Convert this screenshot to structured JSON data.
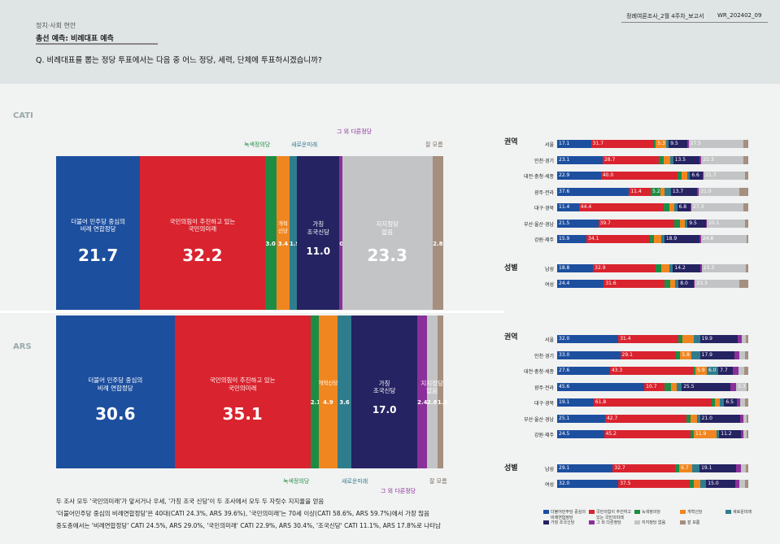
{
  "header": {
    "category": "정치·사회 현안",
    "section": "총선 예측: 비례대표 예측",
    "question": "Q. 비례대표를 뽑는 정당 투표에서는 다음 중 어느 정당, 세력, 단체에 투표하시겠습니까?",
    "report_name": "정례여론조사_2월 4주차_보고서",
    "report_code": "WR_202402_09"
  },
  "colors": {
    "democratic": "#1d4f9f",
    "ppp": "#d9232e",
    "green": "#1e8c45",
    "reform": "#f0861f",
    "newfuture": "#2f7d8c",
    "cho": "#252361",
    "other": "#8b2f9b",
    "none": "#c3c4c6",
    "dk": "#a58f7e"
  },
  "chart_data": [
    {
      "type": "bar",
      "title": "CATI",
      "series": [
        {
          "name": "더불어민주당 중심의 비례 연합정당",
          "value": 21.7
        },
        {
          "name": "국민의힘이 추진하고 있는 국민의미래",
          "value": 32.2
        },
        {
          "name": "녹색정의당",
          "value": 3.0
        },
        {
          "name": "개혁신당",
          "value": 3.4
        },
        {
          "name": "새로운미래",
          "value": 1.9
        },
        {
          "name": "가칭 조국신당",
          "value": 11.0
        },
        {
          "name": "그 외 다른정당",
          "value": 0.7
        },
        {
          "name": "지지정당 없음",
          "value": 23.3
        },
        {
          "name": "잘 모름",
          "value": 2.8
        }
      ]
    },
    {
      "type": "bar",
      "title": "ARS",
      "series": [
        {
          "name": "더불어민주당 중심의 비례 연합정당",
          "value": 30.6
        },
        {
          "name": "국민의힘이 추진하고 있는 국민의미래",
          "value": 35.1
        },
        {
          "name": "녹색정의당",
          "value": 2.1
        },
        {
          "name": "개혁신당",
          "value": 4.9
        },
        {
          "name": "새로운미래",
          "value": 3.6
        },
        {
          "name": "가칭 조국신당",
          "value": 17.0
        },
        {
          "name": "그 외 다른정당",
          "value": 2.4
        },
        {
          "name": "지지정당 없음",
          "value": 2.8
        },
        {
          "name": "잘 모름",
          "value": 1.5
        }
      ]
    }
  ],
  "cati": {
    "label": "CATI",
    "top_labels": {
      "green": "녹색정의당",
      "newfuture": "새로운미래",
      "other": "그 외 다른정당",
      "dk": "잘 모름"
    },
    "dem_name": "더불어 민주당 중심의\n비례 연합정당",
    "ppp_name": "국민의힘이 추진하고 있는\n국민의미래",
    "reform_name": "개혁\n신당",
    "cho_name": "가칭\n조국신당",
    "none_name": "지지정당\n없음",
    "values": {
      "dem": "21.7",
      "ppp": "32.2",
      "green": "3.0",
      "reform": "3.4",
      "newfuture": "1.9",
      "cho": "11.0",
      "other": "0.7",
      "none": "23.3",
      "dk": "2.8"
    },
    "rows_region_title": "권역",
    "rows_gender_title": "성별",
    "rows": [
      {
        "label": "서울",
        "v": [
          17.1,
          31.7,
          1.0,
          5.3,
          1.2,
          9.5,
          0.5,
          27.5,
          2.6
        ],
        "t": [
          "17.1",
          "31.7",
          "",
          "5.3",
          "",
          "9.5",
          "",
          "27.5",
          ""
        ]
      },
      {
        "label": "인천·경기",
        "v": [
          23.1,
          28.7,
          2.3,
          3.2,
          1.6,
          13.5,
          0.8,
          21.3,
          2.5
        ],
        "t": [
          "23.1",
          "28.7",
          "",
          "",
          "",
          "13.5",
          "",
          "21.3",
          ""
        ]
      },
      {
        "label": "대전·충청·세종",
        "v": [
          22.9,
          40.0,
          2.0,
          3.1,
          1.5,
          6.6,
          0.6,
          21.7,
          1.6
        ],
        "t": [
          "22.9",
          "40.0",
          "",
          "",
          "",
          "6.6",
          "",
          "21.7",
          ""
        ]
      },
      {
        "label": "광주·전라",
        "v": [
          37.6,
          11.4,
          5.2,
          1.8,
          3.5,
          13.7,
          1.0,
          21.0,
          4.8
        ],
        "t": [
          "37.6",
          "11.4",
          "5.2",
          "",
          "",
          "13.7",
          "",
          "21.0",
          ""
        ]
      },
      {
        "label": "대구·경북",
        "v": [
          11.4,
          44.4,
          3.0,
          2.5,
          1.5,
          6.8,
          0.6,
          27.3,
          2.5
        ],
        "t": [
          "11.4",
          "44.4",
          "",
          "",
          "",
          "6.8",
          "",
          "27.3",
          ""
        ]
      },
      {
        "label": "부산·울산·경남",
        "v": [
          21.5,
          39.7,
          3.0,
          2.8,
          1.2,
          9.5,
          0.6,
          20.1,
          1.6
        ],
        "t": [
          "21.5",
          "39.7",
          "",
          "",
          "",
          "9.5",
          "",
          "20.1",
          ""
        ]
      },
      {
        "label": "강원·제주",
        "v": [
          15.9,
          34.1,
          2.5,
          3.7,
          1.8,
          18.9,
          0.9,
          24.8,
          0.8
        ],
        "t": [
          "15.9",
          "34.1",
          "",
          "",
          "",
          "18.9",
          "",
          "24.8",
          ""
        ]
      },
      {
        "label": "남성",
        "v": [
          18.8,
          32.9,
          2.8,
          4.2,
          1.9,
          14.2,
          0.8,
          23.3,
          1.1
        ],
        "t": [
          "18.8",
          "32.9",
          "",
          "",
          "",
          "14.2",
          "",
          "23.3",
          ""
        ]
      },
      {
        "label": "여성",
        "v": [
          24.4,
          31.6,
          3.1,
          2.5,
          1.9,
          8.0,
          0.6,
          23.3,
          4.6
        ],
        "t": [
          "24.4",
          "31.6",
          "",
          "",
          "",
          "8.0",
          "",
          "23.3",
          ""
        ]
      }
    ]
  },
  "ars": {
    "label": "ARS",
    "bottom_labels": {
      "green": "녹색정의당",
      "newfuture": "새로운미래",
      "other": "그 외 다른정당",
      "dk": "잘 모름"
    },
    "dem_name": "더불어 민주당 중심의\n비례 연합정당",
    "ppp_name": "국민의힘이 추진하고 있는\n국민의미래",
    "reform_name": "개혁신당",
    "cho_name": "가칭\n조국신당",
    "none_name": "지지정당\n없음",
    "values": {
      "dem": "30.6",
      "ppp": "35.1",
      "green": "2.1",
      "reform": "4.9",
      "newfuture": "3.6",
      "cho": "17.0",
      "other": "2.4",
      "none": "2.8",
      "dk": "1.5"
    },
    "rows_region_title": "권역",
    "rows_gender_title": "성별",
    "rows": [
      {
        "label": "서울",
        "v": [
          32.0,
          31.4,
          2.0,
          6.0,
          3.3,
          19.9,
          2.2,
          2.0,
          1.2
        ],
        "t": [
          "32.0",
          "31.4",
          "",
          "",
          "",
          "19.9",
          "",
          "",
          ""
        ]
      },
      {
        "label": "인천·경기",
        "v": [
          33.0,
          29.1,
          2.3,
          5.8,
          4.5,
          17.9,
          2.6,
          3.0,
          1.8
        ],
        "t": [
          "33.0",
          "29.1",
          "",
          "5.8",
          "",
          "17.9",
          "",
          "",
          ""
        ]
      },
      {
        "label": "대전·충청·세종",
        "v": [
          27.6,
          43.3,
          1.5,
          5.9,
          6.0,
          7.7,
          2.7,
          3.3,
          2.0
        ],
        "t": [
          "27.6",
          "43.3",
          "",
          "5.9",
          "6.0",
          "7.7",
          "",
          "",
          ""
        ]
      },
      {
        "label": "광주·전라",
        "v": [
          45.6,
          10.7,
          3.4,
          3.0,
          2.5,
          25.5,
          3.0,
          5.3,
          1.0
        ],
        "t": [
          "45.6",
          "10.7",
          "",
          "",
          "",
          "25.5",
          "",
          "5.3",
          ""
        ]
      },
      {
        "label": "대구·경북",
        "v": [
          19.1,
          61.8,
          1.5,
          2.8,
          2.2,
          6.5,
          2.0,
          2.5,
          1.6
        ],
        "t": [
          "19.1",
          "61.8",
          "",
          "",
          "",
          "6.5",
          "",
          "",
          ""
        ]
      },
      {
        "label": "부산·울산·경남",
        "v": [
          25.1,
          42.7,
          2.0,
          3.2,
          1.7,
          21.0,
          1.8,
          1.5,
          1.0
        ],
        "t": [
          "25.1",
          "42.7",
          "",
          "",
          "",
          "21.0",
          "",
          "",
          ""
        ]
      },
      {
        "label": "강원·제주",
        "v": [
          24.5,
          45.2,
          1.8,
          11.9,
          1.4,
          11.2,
          1.5,
          1.5,
          1.0
        ],
        "t": [
          "24.5",
          "45.2",
          "",
          "11.9",
          "",
          "11.2",
          "",
          "",
          ""
        ]
      },
      {
        "label": "남성",
        "v": [
          29.1,
          32.7,
          2.1,
          6.7,
          3.9,
          19.1,
          2.4,
          2.6,
          1.4
        ],
        "t": [
          "29.1",
          "32.7",
          "",
          "6.7",
          "",
          "19.1",
          "",
          "",
          ""
        ]
      },
      {
        "label": "여성",
        "v": [
          32.0,
          37.5,
          2.1,
          3.1,
          3.3,
          15.0,
          2.4,
          3.0,
          1.6
        ],
        "t": [
          "32.0",
          "37.5",
          "",
          "",
          "",
          "15.0",
          "",
          "",
          ""
        ]
      }
    ]
  },
  "legend": [
    {
      "key": "democratic",
      "label": "더불어민주당 중심의 비례연합정당"
    },
    {
      "key": "ppp",
      "label": "국민의힘이 추진하고 있는 국민의미래"
    },
    {
      "key": "green",
      "label": "녹색정의당"
    },
    {
      "key": "reform",
      "label": "개혁신당"
    },
    {
      "key": "newfuture",
      "label": "새로운미래"
    },
    {
      "key": "cho",
      "label": "가칭 조국신당"
    },
    {
      "key": "other",
      "label": "그 외 다른정당"
    },
    {
      "key": "none",
      "label": "지지정당 없음"
    },
    {
      "key": "dk",
      "label": "잘 모름"
    }
  ],
  "footnote": {
    "line1": "두 조사 모두 '국민의미래'가 앞서거나 우세, '가칭 조국 신당'이 두 조사에서 모두 두 자릿수 지지율을 얻음",
    "line2": "'더불어민주당 중심의 비례연합정당'은 40대(CATI 24.3%, ARS 39.6%), '국민의미래'는 70세 이상(CATI 58.6%, ARS 59.7%)에서 가장 많음",
    "line3": "중도층에서는 '비례연합정당' CATI 24.5%, ARS 29.0%, '국민의미래' CATI 22.9%, ARS 30.4%, '조국신당' CATI 11.1%, ARS 17.8%로 나타남"
  }
}
